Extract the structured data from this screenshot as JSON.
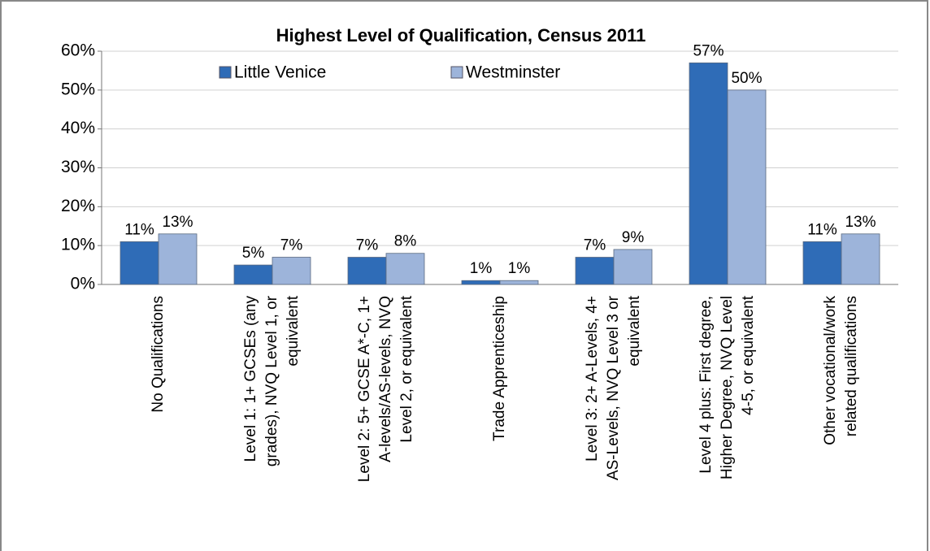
{
  "chart_data": {
    "type": "bar",
    "title": "Highest Level of Qualification, Census 2011",
    "categories": [
      "No Qualifications",
      "Level 1: 1+ GCSEs (any grades), NVQ Level 1, or equivalent",
      "Level 2: 5+ GCSE A*-C, 1+ A-levels/AS-levels, NVQ Level 2, or equivalent",
      "Trade Apprenticeship",
      "Level 3: 2+ A-Levels, 4+ AS-Levels, NVQ Level 3 or equivalent",
      "Level 4 plus: First degree, Higher Degree, NVQ Level 4-5, or equivalent",
      "Other vocational/work related qualifications"
    ],
    "series": [
      {
        "name": "Little Venice",
        "color": "#2f6cb7",
        "values": [
          11,
          5,
          7,
          1,
          7,
          57,
          11
        ],
        "value_labels": [
          "11%",
          "5%",
          "7%",
          "1%",
          "7%",
          "57%",
          "11%"
        ]
      },
      {
        "name": "Westminster",
        "color": "#9db4da",
        "values": [
          13,
          7,
          8,
          1,
          9,
          50,
          13
        ],
        "value_labels": [
          "13%",
          "7%",
          "8%",
          "1%",
          "9%",
          "50%",
          "13%"
        ]
      }
    ],
    "ylim": [
      0,
      60
    ],
    "yticks": [
      {
        "value": 0,
        "label": "0%"
      },
      {
        "value": 10,
        "label": "10%"
      },
      {
        "value": 20,
        "label": "20%"
      },
      {
        "value": 30,
        "label": "30%"
      },
      {
        "value": 40,
        "label": "40%"
      },
      {
        "value": 50,
        "label": "50%"
      },
      {
        "value": 60,
        "label": "60%"
      }
    ],
    "grid": true
  }
}
